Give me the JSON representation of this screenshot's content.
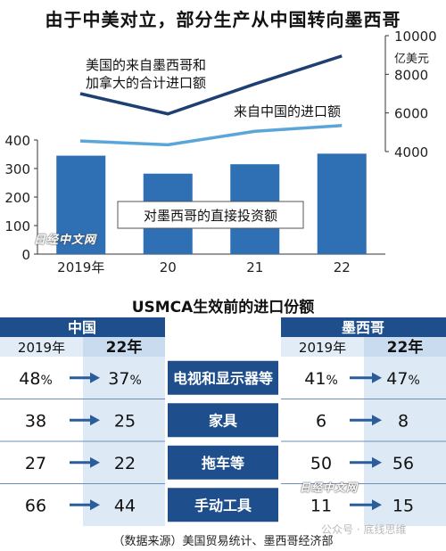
{
  "title": "由于中美对立，部分生产从中国转向墨西哥",
  "chart_data": [
    {
      "type": "bar+line",
      "categories": [
        "2019年",
        "20",
        "21",
        "22"
      ],
      "bars": {
        "name": "对墨西哥的直接投资额",
        "values": [
          345,
          282,
          315,
          352
        ],
        "ylim": [
          0,
          400
        ],
        "yticks": [
          "0",
          "100",
          "200",
          "300",
          "400"
        ],
        "color": "#2f6fb3"
      },
      "lines": {
        "unit": "亿美元",
        "ylim": [
          4000,
          10000
        ],
        "yticks": [
          "4000",
          "6000",
          "8000",
          "10000"
        ],
        "series": [
          {
            "name": "美国的来自墨西哥和加拿大的合计进口额",
            "name_lines": [
              "美国的来自墨西哥和",
              "加拿大的合计进口额"
            ],
            "values": [
              7000,
              5950,
              7500,
              8950
            ],
            "color": "#1f3f73"
          },
          {
            "name": "来自中国的进口额",
            "values": [
              4550,
              4350,
              5050,
              5350
            ],
            "color": "#5aa6d8"
          }
        ]
      },
      "grid": false
    },
    {
      "type": "table",
      "title": "USMCA生效前的进口份额",
      "left_group": "中国",
      "right_group": "墨西哥",
      "year_a": "2019年",
      "year_b": "22年",
      "rows": [
        {
          "label": "电视和显示器等",
          "china_a": "48",
          "china_b": "37",
          "mex_a": "41",
          "mex_b": "47",
          "pct": "%"
        },
        {
          "label": "家具",
          "china_a": "38",
          "china_b": "25",
          "mex_a": "6",
          "mex_b": "8",
          "pct": ""
        },
        {
          "label": "拖车等",
          "china_a": "27",
          "china_b": "22",
          "mex_a": "50",
          "mex_b": "56",
          "pct": ""
        },
        {
          "label": "手动工具",
          "china_a": "66",
          "china_b": "44",
          "mex_a": "11",
          "mex_b": "15",
          "pct": ""
        }
      ]
    }
  ],
  "source": "（数据来源）美国贸易统计、墨西哥经济部",
  "watermarks": [
    "日经中文网",
    "日经中文网",
    "公众号 · 底线思维"
  ]
}
